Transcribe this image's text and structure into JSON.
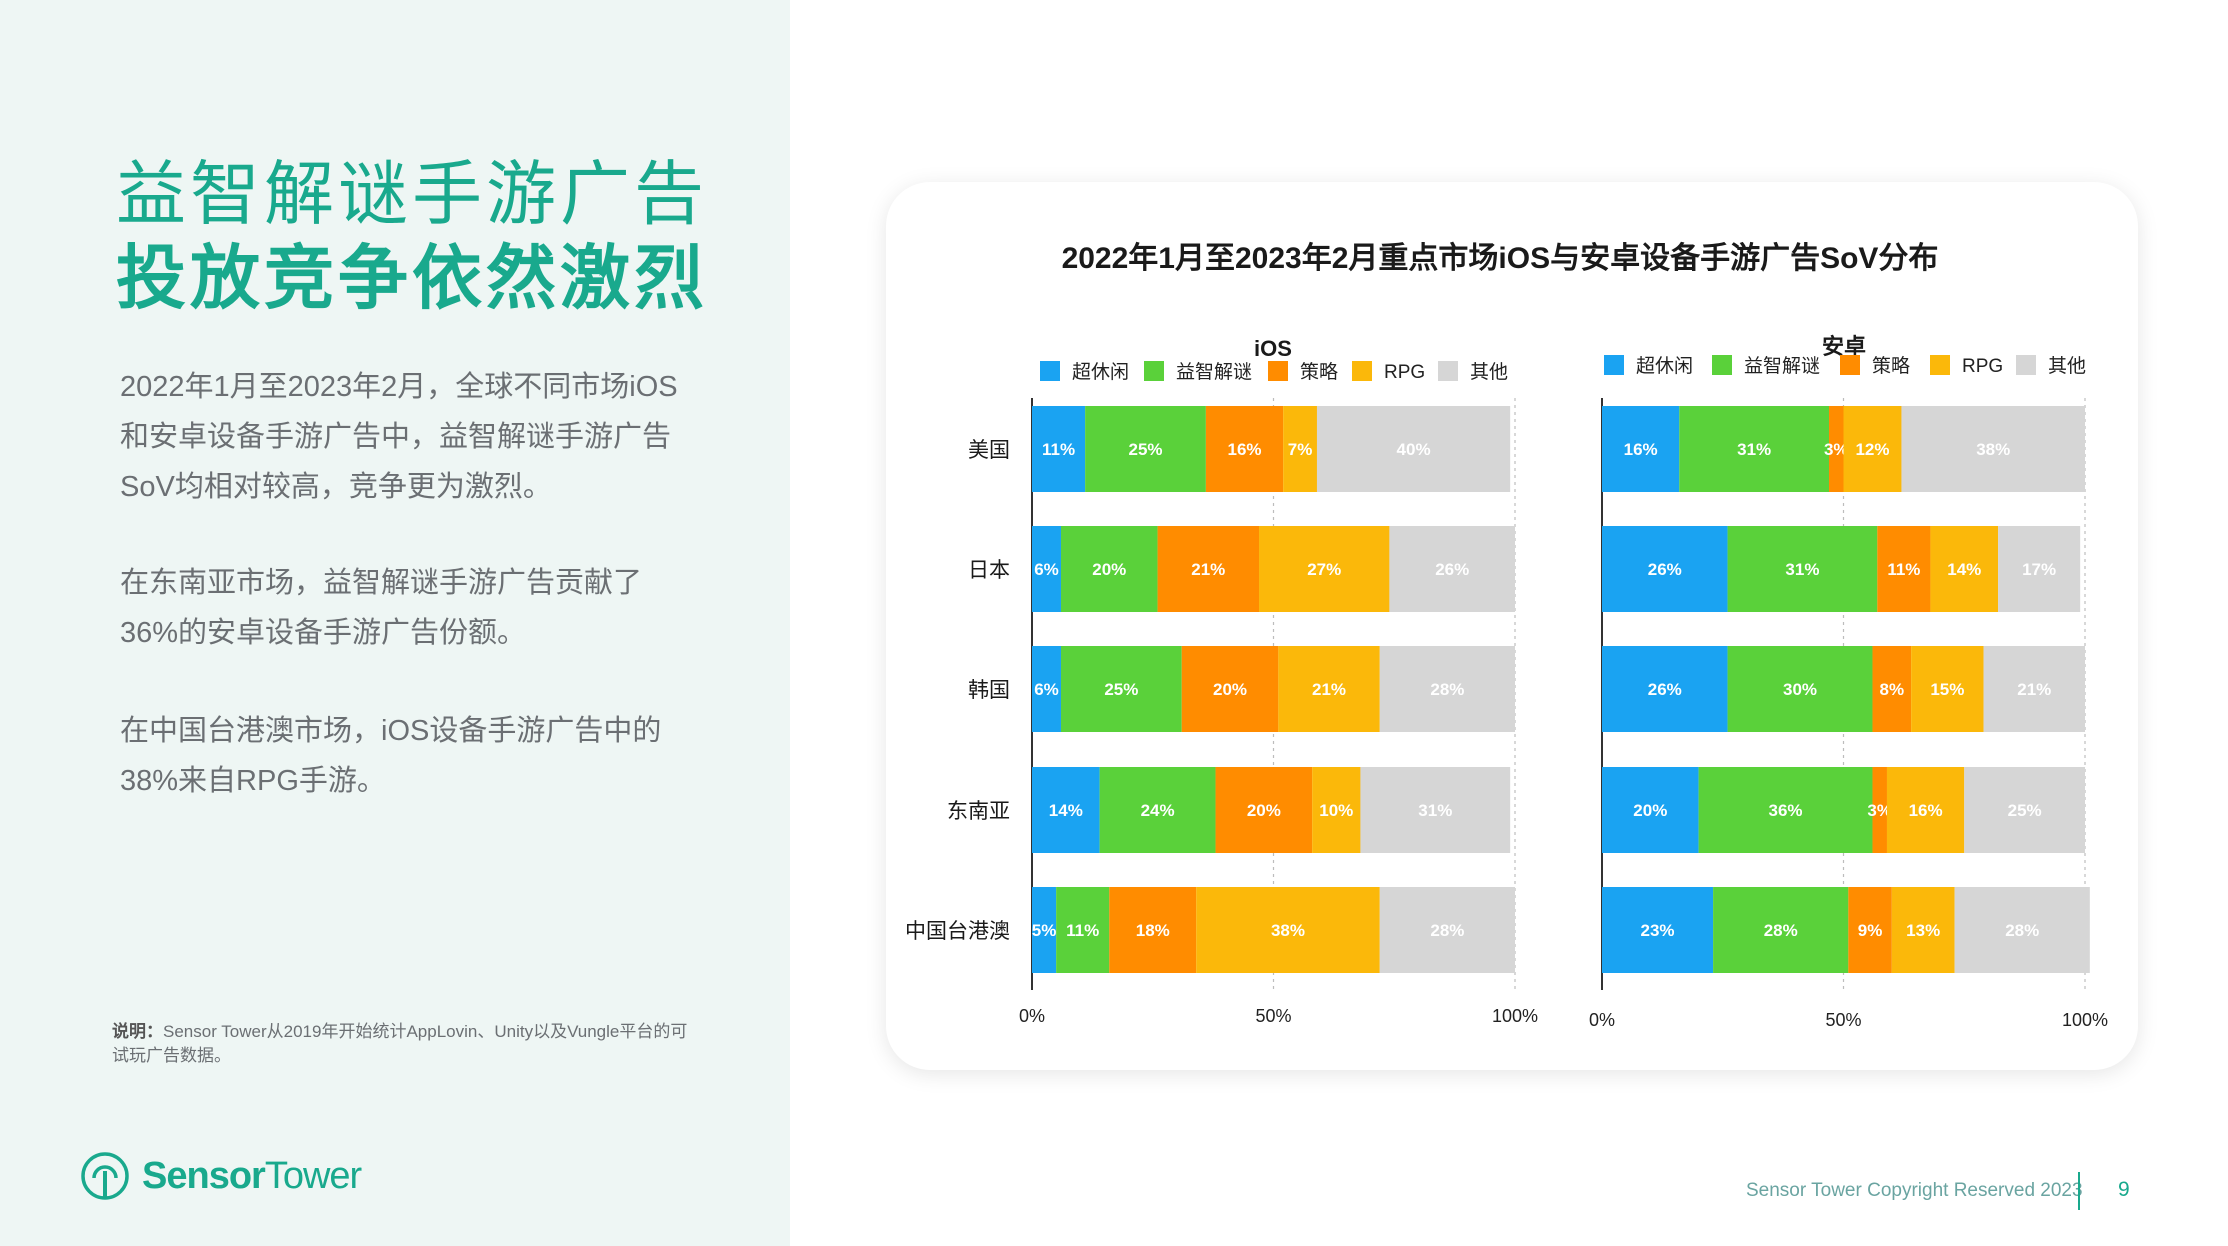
{
  "page": {
    "headline_line1": "益智解谜手游广告",
    "headline_line2": "投放竞争依然激烈",
    "paragraph1": "2022年1月至2023年2月，全球不同市场iOS和安卓设备手游广告中，益智解谜手游广告SoV均相对较高，竞争更为激烈。",
    "paragraph2": "在东南亚市场，益智解谜手游广告贡献了36%的安卓设备手游广告份额。",
    "paragraph3": "在中国台港澳市场，iOS设备手游广告中的38%来自RPG手游。",
    "note_label": "说明：",
    "note_text": "Sensor Tower从2019年开始统计AppLovin、Unity以及Vungle平台的可试玩广告数据。",
    "logo_bold": "Sensor",
    "logo_regular": "Tower",
    "footer_copyright": "Sensor Tower Copyright Reserved 2023",
    "page_number": "9"
  },
  "chart_data": [
    {
      "type": "bar",
      "orientation": "horizontal",
      "stacked": true,
      "title": "2022年1月至2023年2月重点市场iOS与安卓设备手游广告SoV分布",
      "subtitle": "iOS",
      "categories": [
        "美国",
        "日本",
        "韩国",
        "东南亚",
        "中国台港澳"
      ],
      "series": [
        {
          "name": "超休闲",
          "color": "#1aa3f2",
          "values": [
            11,
            6,
            6,
            14,
            5
          ]
        },
        {
          "name": "益智解谜",
          "color": "#5ad13a",
          "values": [
            25,
            20,
            25,
            24,
            11
          ]
        },
        {
          "name": "策略",
          "color": "#ff8c00",
          "values": [
            16,
            21,
            20,
            20,
            18
          ]
        },
        {
          "name": "RPG",
          "color": "#fbb80a",
          "values": [
            7,
            27,
            21,
            10,
            38
          ]
        },
        {
          "name": "其他",
          "color": "#d6d6d6",
          "values": [
            40,
            26,
            28,
            31,
            28
          ]
        }
      ],
      "xlim": [
        0,
        100
      ],
      "x_ticks": [
        "0%",
        "50%",
        "100%"
      ],
      "legend_position": "top",
      "grid": "vertical-dashed"
    },
    {
      "type": "bar",
      "orientation": "horizontal",
      "stacked": true,
      "subtitle": "安卓",
      "categories": [
        "美国",
        "日本",
        "韩国",
        "东南亚",
        "中国台港澳"
      ],
      "series": [
        {
          "name": "超休闲",
          "color": "#1aa3f2",
          "values": [
            16,
            26,
            26,
            20,
            23
          ]
        },
        {
          "name": "益智解谜",
          "color": "#5ad13a",
          "values": [
            31,
            31,
            30,
            36,
            28
          ]
        },
        {
          "name": "策略",
          "color": "#ff8c00",
          "values": [
            3,
            11,
            8,
            3,
            9
          ]
        },
        {
          "name": "RPG",
          "color": "#fbb80a",
          "values": [
            12,
            14,
            15,
            16,
            13
          ]
        },
        {
          "name": "其他",
          "color": "#d6d6d6",
          "values": [
            38,
            17,
            21,
            25,
            28
          ]
        }
      ],
      "xlim": [
        0,
        100
      ],
      "x_ticks": [
        "0%",
        "50%",
        "100%"
      ],
      "legend_position": "top",
      "grid": "vertical-dashed"
    }
  ]
}
